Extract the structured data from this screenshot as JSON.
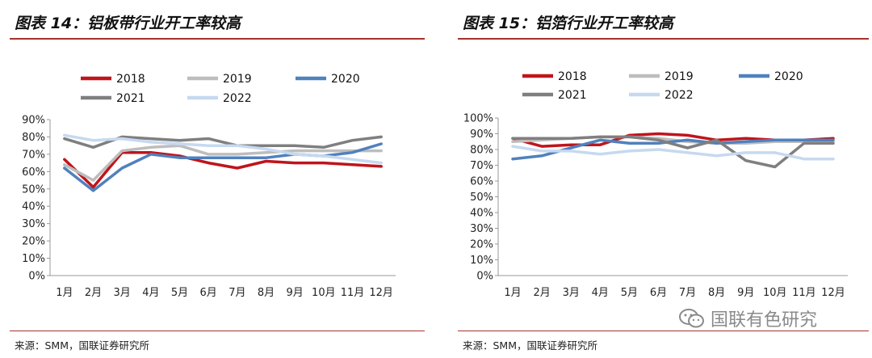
{
  "charts": [
    {
      "title": "图表 14：铝板带行业开工率较高",
      "source": "来源：SMM，国联证券研究所",
      "chart_data": {
        "type": "line",
        "categories": [
          "1月",
          "2月",
          "3月",
          "4月",
          "5月",
          "6月",
          "7月",
          "8月",
          "9月",
          "10月",
          "11月",
          "12月"
        ],
        "ylim": [
          0,
          90
        ],
        "yticks": [
          0,
          10,
          20,
          30,
          40,
          50,
          60,
          70,
          80,
          90
        ],
        "ytick_labels": [
          "0%",
          "10%",
          "20%",
          "30%",
          "40%",
          "50%",
          "60%",
          "70%",
          "80%",
          "90%"
        ],
        "legend_position": "top",
        "series": [
          {
            "name": "2018",
            "color": "#c0141b",
            "values": [
              67,
              51,
              71,
              71,
              69,
              65,
              62,
              66,
              65,
              65,
              64,
              63
            ]
          },
          {
            "name": "2019",
            "color": "#bdbdbd",
            "values": [
              64,
              55,
              72,
              74,
              75,
              70,
              70,
              71,
              72,
              72,
              72,
              72
            ]
          },
          {
            "name": "2020",
            "color": "#4f81bd",
            "values": [
              62,
              49,
              62,
              70,
              68,
              68,
              68,
              68,
              70,
              69,
              71,
              76
            ]
          },
          {
            "name": "2021",
            "color": "#7f7f7f",
            "values": [
              79,
              74,
              80,
              79,
              78,
              79,
              75,
              75,
              75,
              74,
              78,
              80
            ]
          },
          {
            "name": "2022",
            "color": "#c6d9f0",
            "values": [
              81,
              78,
              79,
              77,
              76,
              75,
              75,
              73,
              70,
              69,
              67,
              65
            ]
          }
        ]
      }
    },
    {
      "title": "图表 15：铝箔行业开工率较高",
      "source": "来源：SMM，国联证券研究所",
      "chart_data": {
        "type": "line",
        "categories": [
          "1月",
          "2月",
          "3月",
          "4月",
          "5月",
          "6月",
          "7月",
          "8月",
          "9月",
          "10月",
          "11月",
          "12月"
        ],
        "ylim": [
          0,
          100
        ],
        "yticks": [
          0,
          10,
          20,
          30,
          40,
          50,
          60,
          70,
          80,
          90,
          100
        ],
        "ytick_labels": [
          "0%",
          "10%",
          "20%",
          "30%",
          "40%",
          "50%",
          "60%",
          "70%",
          "80%",
          "90%",
          "100%"
        ],
        "legend_position": "top",
        "series": [
          {
            "name": "2018",
            "color": "#c0141b",
            "values": [
              87,
              82,
              83,
              83,
              89,
              90,
              89,
              86,
              87,
              86,
              86,
              87
            ]
          },
          {
            "name": "2019",
            "color": "#bdbdbd",
            "values": [
              85,
              86,
              87,
              88,
              88,
              87,
              85,
              84,
              84,
              85,
              85,
              85
            ]
          },
          {
            "name": "2020",
            "color": "#4f81bd",
            "values": [
              74,
              76,
              81,
              86,
              84,
              84,
              86,
              84,
              85,
              86,
              86,
              86
            ]
          },
          {
            "name": "2021",
            "color": "#7f7f7f",
            "values": [
              87,
              87,
              87,
              88,
              88,
              86,
              81,
              86,
              73,
              69,
              84,
              84
            ]
          },
          {
            "name": "2022",
            "color": "#c6d9f0",
            "values": [
              82,
              79,
              79,
              77,
              79,
              80,
              78,
              76,
              78,
              78,
              74,
              74
            ]
          }
        ]
      }
    }
  ],
  "watermark": {
    "text": "国联有色研究",
    "icon": "wechat-icon"
  }
}
